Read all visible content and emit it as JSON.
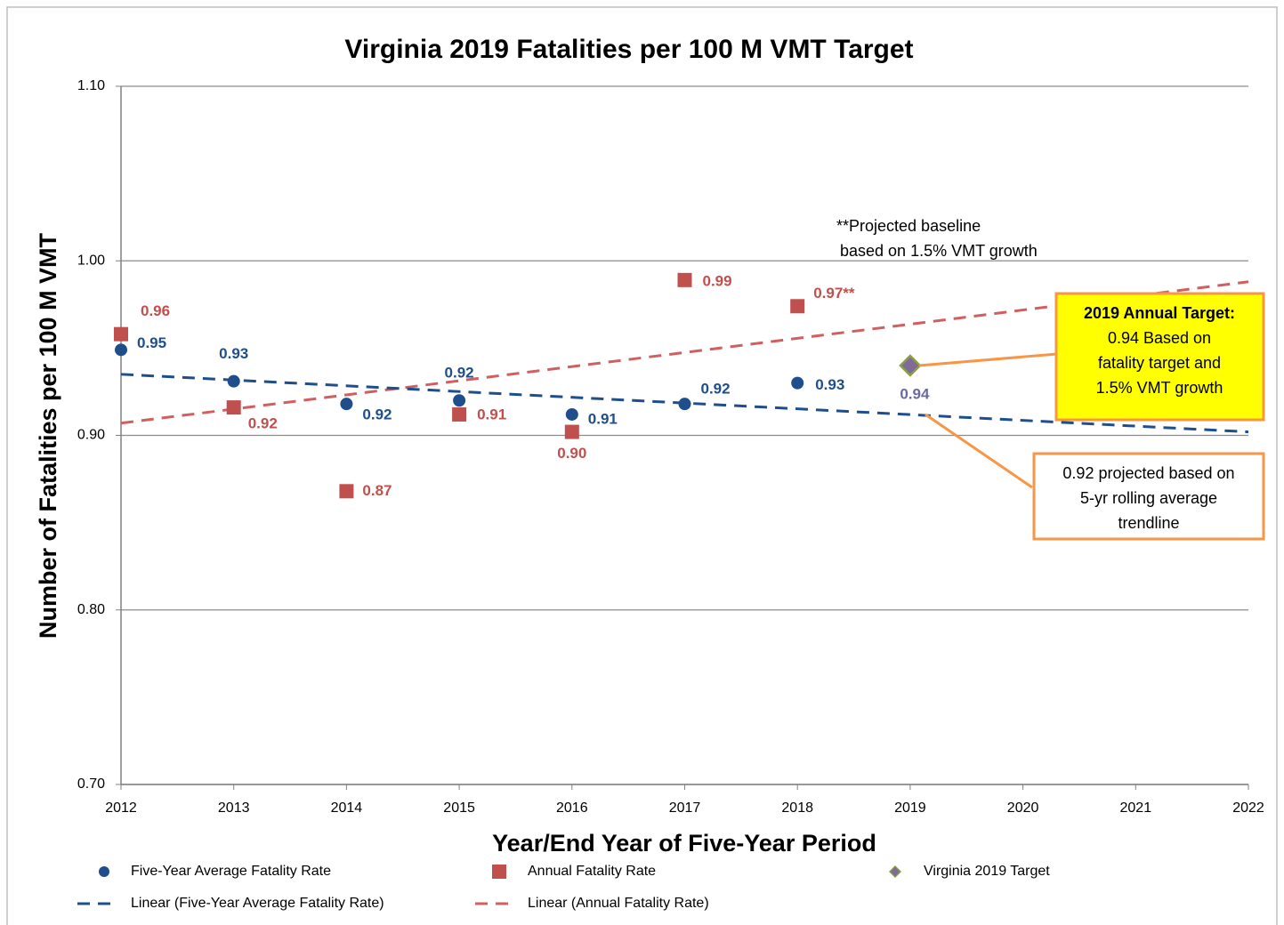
{
  "chart_data": {
    "type": "scatter",
    "title": "Virginia 2019 Fatalities per 100 M VMT Target",
    "x_label": "Year/End Year of Five-Year Period",
    "y_label": "Number of Fatalities per 100 M VMT",
    "xlim": [
      2012,
      2022
    ],
    "xticks": [
      2012,
      2013,
      2014,
      2015,
      2016,
      2017,
      2018,
      2019,
      2020,
      2021,
      2022
    ],
    "ylim": [
      0.7,
      1.1
    ],
    "yticks": [
      {
        "value": 0.7,
        "label": "0.70"
      },
      {
        "value": 0.8,
        "label": "0.80"
      },
      {
        "value": 0.9,
        "label": "0.90"
      },
      {
        "value": 1.0,
        "label": "1.00"
      },
      {
        "value": 1.1,
        "label": "1.10"
      }
    ],
    "grid": true,
    "legend": "bottom",
    "series": [
      {
        "name": "Five-Year Average Fatality Rate",
        "marker": "circle",
        "color": "#1f4e8c",
        "x": [
          2012,
          2013,
          2014,
          2015,
          2016,
          2017,
          2018
        ],
        "values": [
          0.949,
          0.931,
          0.918,
          0.92,
          0.912,
          0.918,
          0.93
        ],
        "value_labels": [
          "0.95",
          "0.93",
          "0.92",
          "0.92",
          "0.91",
          "0.92",
          "0.93"
        ]
      },
      {
        "name": "Annual Fatality Rate",
        "marker": "square",
        "color": "#c0504d",
        "x": [
          2012,
          2013,
          2014,
          2015,
          2016,
          2017,
          2018
        ],
        "values": [
          0.958,
          0.916,
          0.868,
          0.912,
          0.902,
          0.989,
          0.974
        ],
        "value_labels": [
          "0.96",
          "0.92",
          "0.87",
          "0.91",
          "0.90",
          "0.99",
          "0.97**"
        ]
      },
      {
        "name": "Virginia 2019 Target",
        "marker": "diamond",
        "color": "#7f6a9a",
        "x": [
          2019
        ],
        "values": [
          0.94
        ],
        "value_labels": [
          "0.94"
        ]
      },
      {
        "name": "Linear (Five-Year Average Fatality Rate)",
        "marker": "dashed-line",
        "color": "#1f4e8c",
        "x": [
          2012,
          2022
        ],
        "values": [
          0.935,
          0.902
        ]
      },
      {
        "name": "Linear (Annual Fatality Rate)",
        "marker": "dashed-line",
        "color": "#d06060",
        "x": [
          2012,
          2022
        ],
        "values": [
          0.907,
          0.988
        ]
      }
    ],
    "annotations": [
      {
        "lines": [
          "**Projected baseline",
          "based on 1.5% VMT growth"
        ]
      },
      {
        "lines": [
          "2019 Annual Target:",
          "0.94 Based on",
          "fatality target and",
          "1.5% VMT growth"
        ],
        "color": "#ffff00"
      },
      {
        "lines": [
          "0.92 projected based on",
          "5-yr rolling average",
          "trendline"
        ],
        "color": "#ffffff"
      }
    ]
  }
}
